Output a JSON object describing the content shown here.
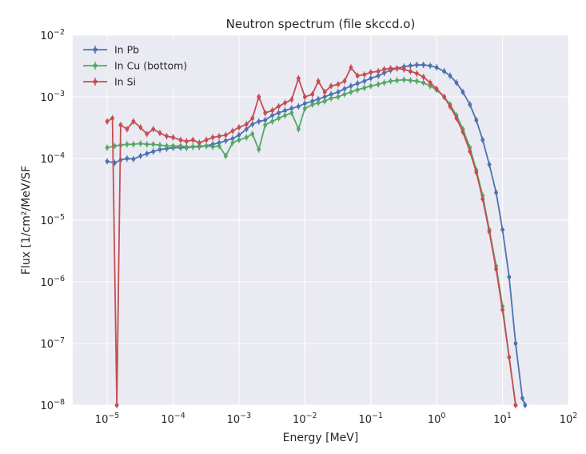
{
  "chart_data": {
    "type": "line",
    "title": "Neutron spectrum (file skccd.o)",
    "xlabel": "Energy [MeV]",
    "ylabel": "Flux [1/cm²/MeV/SF",
    "xscale": "log",
    "yscale": "log",
    "xlim": [
      3e-06,
      100
    ],
    "ylim": [
      1e-08,
      0.01
    ],
    "xticks": [
      {
        "value": 1e-05,
        "base": "10",
        "exp": "−5"
      },
      {
        "value": 0.0001,
        "base": "10",
        "exp": "−4"
      },
      {
        "value": 0.001,
        "base": "10",
        "exp": "−3"
      },
      {
        "value": 0.01,
        "base": "10",
        "exp": "−2"
      },
      {
        "value": 0.1,
        "base": "10",
        "exp": "−1"
      },
      {
        "value": 1,
        "base": "10",
        "exp": "0"
      },
      {
        "value": 10,
        "base": "10",
        "exp": "1"
      },
      {
        "value": 100,
        "base": "10",
        "exp": "2"
      }
    ],
    "yticks": [
      {
        "value": 1e-08,
        "base": "10",
        "exp": "−8"
      },
      {
        "value": 1e-07,
        "base": "10",
        "exp": "−7"
      },
      {
        "value": 1e-06,
        "base": "10",
        "exp": "−6"
      },
      {
        "value": 1e-05,
        "base": "10",
        "exp": "−5"
      },
      {
        "value": 0.0001,
        "base": "10",
        "exp": "−4"
      },
      {
        "value": 0.001,
        "base": "10",
        "exp": "−3"
      },
      {
        "value": 0.01,
        "base": "10",
        "exp": "−2"
      }
    ],
    "grid": true,
    "legend_position": "top-left",
    "series": [
      {
        "name": "In Pb",
        "color": "#4c72b0",
        "points": [
          [
            1e-05,
            9e-05
          ],
          [
            1.3e-05,
            8.5e-05
          ],
          [
            1.6e-05,
            9.5e-05
          ],
          [
            2e-05,
            0.0001
          ],
          [
            2.5e-05,
            9.8e-05
          ],
          [
            3.2e-05,
            0.00011
          ],
          [
            4e-05,
            0.00012
          ],
          [
            5e-05,
            0.00013
          ],
          [
            6.3e-05,
            0.00014
          ],
          [
            8e-05,
            0.000145
          ],
          [
            0.0001,
            0.00015
          ],
          [
            0.00013,
            0.00015
          ],
          [
            0.00016,
            0.00015
          ],
          [
            0.0002,
            0.000155
          ],
          [
            0.00025,
            0.000155
          ],
          [
            0.00032,
            0.00016
          ],
          [
            0.0004,
            0.00017
          ],
          [
            0.0005,
            0.00018
          ],
          [
            0.00063,
            0.000195
          ],
          [
            0.0008,
            0.00021
          ],
          [
            0.001,
            0.00024
          ],
          [
            0.0013,
            0.0003
          ],
          [
            0.0016,
            0.00036
          ],
          [
            0.002,
            0.0004
          ],
          [
            0.0025,
            0.00042
          ],
          [
            0.0032,
            0.0005
          ],
          [
            0.004,
            0.00055
          ],
          [
            0.005,
            0.0006
          ],
          [
            0.0063,
            0.00065
          ],
          [
            0.008,
            0.0007
          ],
          [
            0.01,
            0.00078
          ],
          [
            0.013,
            0.00085
          ],
          [
            0.016,
            0.00092
          ],
          [
            0.02,
            0.001
          ],
          [
            0.025,
            0.0011
          ],
          [
            0.032,
            0.0012
          ],
          [
            0.04,
            0.00135
          ],
          [
            0.05,
            0.0015
          ],
          [
            0.063,
            0.00165
          ],
          [
            0.08,
            0.0018
          ],
          [
            0.1,
            0.002
          ],
          [
            0.13,
            0.0022
          ],
          [
            0.16,
            0.00245
          ],
          [
            0.2,
            0.0027
          ],
          [
            0.25,
            0.0029
          ],
          [
            0.32,
            0.0031
          ],
          [
            0.4,
            0.0032
          ],
          [
            0.5,
            0.0033
          ],
          [
            0.63,
            0.0033
          ],
          [
            0.8,
            0.0032
          ],
          [
            1.0,
            0.003
          ],
          [
            1.3,
            0.0026
          ],
          [
            1.6,
            0.0022
          ],
          [
            2.0,
            0.0017
          ],
          [
            2.5,
            0.0012
          ],
          [
            3.2,
            0.00075
          ],
          [
            4.0,
            0.00042
          ],
          [
            5.0,
            0.0002
          ],
          [
            6.3,
            8e-05
          ],
          [
            8.0,
            2.8e-05
          ],
          [
            10,
            7e-06
          ],
          [
            12.6,
            1.2e-06
          ],
          [
            15.8,
            1e-07
          ],
          [
            20,
            1.3e-08
          ],
          [
            22,
            1e-08
          ]
        ]
      },
      {
        "name": "In Cu (bottom)",
        "color": "#55a868",
        "points": [
          [
            1e-05,
            0.00015
          ],
          [
            1.3e-05,
            0.00016
          ],
          [
            1.6e-05,
            0.000165
          ],
          [
            2e-05,
            0.00017
          ],
          [
            2.5e-05,
            0.00017
          ],
          [
            3.2e-05,
            0.000175
          ],
          [
            4e-05,
            0.00017
          ],
          [
            5e-05,
            0.00017
          ],
          [
            6.3e-05,
            0.000165
          ],
          [
            8e-05,
            0.00016
          ],
          [
            0.0001,
            0.00016
          ],
          [
            0.00013,
            0.00016
          ],
          [
            0.00016,
            0.000155
          ],
          [
            0.0002,
            0.000155
          ],
          [
            0.00025,
            0.00016
          ],
          [
            0.00032,
            0.00016
          ],
          [
            0.0004,
            0.000155
          ],
          [
            0.0005,
            0.00016
          ],
          [
            0.00063,
            0.00011
          ],
          [
            0.0008,
            0.00018
          ],
          [
            0.001,
            0.0002
          ],
          [
            0.0013,
            0.00022
          ],
          [
            0.0016,
            0.00025
          ],
          [
            0.002,
            0.00014
          ],
          [
            0.0025,
            0.00035
          ],
          [
            0.0032,
            0.0004
          ],
          [
            0.004,
            0.00045
          ],
          [
            0.005,
            0.0005
          ],
          [
            0.0063,
            0.00055
          ],
          [
            0.008,
            0.0003
          ],
          [
            0.01,
            0.00065
          ],
          [
            0.013,
            0.00075
          ],
          [
            0.016,
            0.0008
          ],
          [
            0.02,
            0.00085
          ],
          [
            0.025,
            0.00095
          ],
          [
            0.032,
            0.001
          ],
          [
            0.04,
            0.0011
          ],
          [
            0.05,
            0.0012
          ],
          [
            0.063,
            0.0013
          ],
          [
            0.08,
            0.0014
          ],
          [
            0.1,
            0.0015
          ],
          [
            0.13,
            0.0016
          ],
          [
            0.16,
            0.0017
          ],
          [
            0.2,
            0.0018
          ],
          [
            0.25,
            0.00185
          ],
          [
            0.32,
            0.0019
          ],
          [
            0.4,
            0.00185
          ],
          [
            0.5,
            0.0018
          ],
          [
            0.63,
            0.0017
          ],
          [
            0.8,
            0.0015
          ],
          [
            1.0,
            0.0013
          ],
          [
            1.3,
            0.001
          ],
          [
            1.6,
            0.00075
          ],
          [
            2.0,
            0.0005
          ],
          [
            2.5,
            0.0003
          ],
          [
            3.2,
            0.00015
          ],
          [
            4.0,
            6.5e-05
          ],
          [
            5.0,
            2.5e-05
          ],
          [
            6.3,
            7e-06
          ],
          [
            8.0,
            1.8e-06
          ],
          [
            10,
            4e-07
          ],
          [
            12.6,
            6e-08
          ],
          [
            15.8,
            1e-08
          ]
        ]
      },
      {
        "name": "In Si",
        "color": "#c44e52",
        "points": [
          [
            1e-05,
            0.0004
          ],
          [
            1.2e-05,
            0.00045
          ],
          [
            1.4e-05,
            1e-08
          ],
          [
            1.6e-05,
            0.00035
          ],
          [
            2e-05,
            0.0003
          ],
          [
            2.5e-05,
            0.0004
          ],
          [
            3.2e-05,
            0.00032
          ],
          [
            4e-05,
            0.00025
          ],
          [
            5e-05,
            0.0003
          ],
          [
            6.3e-05,
            0.00026
          ],
          [
            8e-05,
            0.00023
          ],
          [
            0.0001,
            0.00022
          ],
          [
            0.00013,
            0.0002
          ],
          [
            0.00016,
            0.00019
          ],
          [
            0.0002,
            0.0002
          ],
          [
            0.00025,
            0.00018
          ],
          [
            0.00032,
            0.0002
          ],
          [
            0.0004,
            0.00022
          ],
          [
            0.0005,
            0.00023
          ],
          [
            0.00063,
            0.00024
          ],
          [
            0.0008,
            0.00028
          ],
          [
            0.001,
            0.00032
          ],
          [
            0.0013,
            0.00036
          ],
          [
            0.0016,
            0.00045
          ],
          [
            0.002,
            0.001
          ],
          [
            0.0025,
            0.00055
          ],
          [
            0.0032,
            0.0006
          ],
          [
            0.004,
            0.0007
          ],
          [
            0.005,
            0.0008
          ],
          [
            0.0063,
            0.0009
          ],
          [
            0.008,
            0.002
          ],
          [
            0.01,
            0.001
          ],
          [
            0.013,
            0.0011
          ],
          [
            0.016,
            0.0018
          ],
          [
            0.02,
            0.0012
          ],
          [
            0.025,
            0.0015
          ],
          [
            0.032,
            0.0016
          ],
          [
            0.04,
            0.0018
          ],
          [
            0.05,
            0.003
          ],
          [
            0.063,
            0.0022
          ],
          [
            0.08,
            0.0023
          ],
          [
            0.1,
            0.0025
          ],
          [
            0.13,
            0.0026
          ],
          [
            0.16,
            0.0028
          ],
          [
            0.2,
            0.0029
          ],
          [
            0.25,
            0.0029
          ],
          [
            0.32,
            0.0028
          ],
          [
            0.4,
            0.0026
          ],
          [
            0.5,
            0.0024
          ],
          [
            0.63,
            0.0021
          ],
          [
            0.8,
            0.0017
          ],
          [
            1.0,
            0.00135
          ],
          [
            1.3,
            0.001
          ],
          [
            1.6,
            0.0007
          ],
          [
            2.0,
            0.00045
          ],
          [
            2.5,
            0.00027
          ],
          [
            3.2,
            0.00013
          ],
          [
            4.0,
            6e-05
          ],
          [
            5.0,
            2.2e-05
          ],
          [
            6.3,
            6.5e-06
          ],
          [
            8.0,
            1.6e-06
          ],
          [
            10,
            3.5e-07
          ],
          [
            12.6,
            6e-08
          ],
          [
            15.8,
            1e-08
          ]
        ]
      }
    ]
  }
}
